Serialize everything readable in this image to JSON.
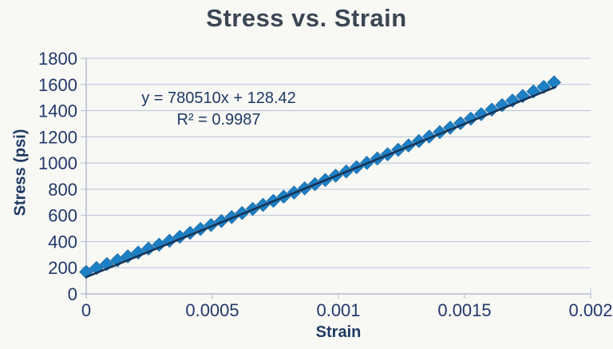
{
  "chart_data": {
    "type": "scatter",
    "title": "Stress vs. Strain",
    "xlabel": "Strain",
    "ylabel": "Stress (psi)",
    "xlim": [
      0,
      0.002
    ],
    "ylim": [
      0,
      1800
    ],
    "x_ticks": [
      0,
      0.0005,
      0.001,
      0.0015,
      0.002
    ],
    "x_tick_labels": [
      "0",
      "0.0005",
      "0.001",
      "0.0015",
      "0.002"
    ],
    "y_ticks": [
      0,
      200,
      400,
      600,
      800,
      1000,
      1200,
      1400,
      1600,
      1800
    ],
    "y_tick_labels": [
      "0",
      "200",
      "400",
      "600",
      "800",
      "1000",
      "1200",
      "1400",
      "1600",
      "1800"
    ],
    "grid": "horizontal",
    "legend": false,
    "trendline": {
      "equation": "y = 780510x + 128.42",
      "r2": "R² = 0.9987",
      "slope": 780510,
      "intercept": 128.42,
      "x_start": 0,
      "x_end": 0.00186
    },
    "series": [
      {
        "name": "Stress vs Strain data",
        "marker": "diamond",
        "x": [
          0,
          4.1e-05,
          8.2e-05,
          0.000124,
          0.000165,
          0.000206,
          0.000247,
          0.000289,
          0.00033,
          0.000371,
          0.000412,
          0.000453,
          0.000495,
          0.000536,
          0.000577,
          0.000618,
          0.00066,
          0.000701,
          0.000742,
          0.000783,
          0.000824,
          0.000866,
          0.000907,
          0.000948,
          0.000989,
          0.001031,
          0.001072,
          0.001113,
          0.001154,
          0.001195,
          0.001237,
          0.001278,
          0.001319,
          0.00136,
          0.001402,
          0.001443,
          0.001484,
          0.001525,
          0.001566,
          0.001608,
          0.001649,
          0.00169,
          0.001731,
          0.001773,
          0.001814,
          0.001855
        ],
        "y": [
          168,
          198,
          228,
          257,
          287,
          316,
          346,
          376,
          406,
          436,
          466,
          496,
          526,
          557,
          587,
          618,
          649,
          680,
          711,
          743,
          774,
          806,
          838,
          870,
          903,
          935,
          968,
          1001,
          1034,
          1067,
          1101,
          1134,
          1168,
          1202,
          1236,
          1270,
          1304,
          1339,
          1373,
          1408,
          1442,
          1477,
          1512,
          1547,
          1581,
          1616
        ]
      }
    ],
    "style": {
      "marker_fill": "#1d80c4",
      "marker_stroke": "#1566a3",
      "trendline_color": "#183356",
      "grid_color": "#b9c4d6",
      "axis_color": "#a9aec6",
      "tick_text_color": "#22386b",
      "title_color": "#3a4653",
      "background": "#f8f8f5"
    }
  }
}
